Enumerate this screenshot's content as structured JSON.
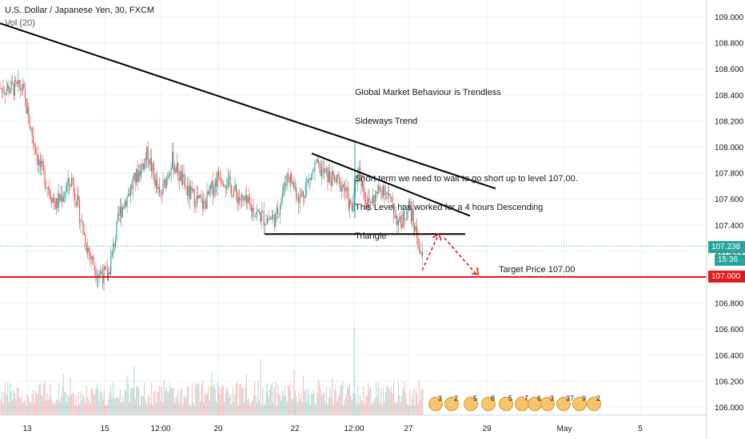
{
  "header": {
    "symbol_line": "U.S. Dollar / Japanese Yen, 30, FXCM",
    "indicator": "Vol (20)"
  },
  "annotation": {
    "lines": [
      "Global Market Behaviour is Trendless",
      "Sideways Trend",
      "",
      "Short term we need to wait to go short up to level 107.00.",
      "This Level has worked for a 4 hours Descending",
      "Triangle"
    ],
    "target_label": "Target Price 107.00"
  },
  "price_badges": {
    "current": "107.238",
    "countdown": "15:36",
    "target": "107.000"
  },
  "events": [
    "3",
    "2",
    "5",
    "8",
    "5",
    "7",
    "6",
    "3",
    "37",
    "9",
    "2"
  ],
  "colors": {
    "up": "#26a69a",
    "down": "#ef5350",
    "target_line": "#e5181b",
    "trend": "#000000"
  },
  "chart_data": {
    "type": "candlestick",
    "title": "U.S. Dollar / Japanese Yen, 30, FXCM",
    "ylim": [
      105.9,
      109.1
    ],
    "y_ticks": [
      106.0,
      106.2,
      106.4,
      106.6,
      106.8,
      107.0,
      107.2,
      107.4,
      107.6,
      107.8,
      108.0,
      108.2,
      108.4,
      108.6,
      108.8,
      109.0
    ],
    "x_ticks": [
      "13",
      "15",
      "12:00",
      "20",
      "22",
      "12:00",
      "27",
      "29",
      "May",
      "5"
    ],
    "approx_close_path": [
      {
        "x": "13",
        "y": 108.45
      },
      {
        "x": "13",
        "y": 108.2
      },
      {
        "x": "13-14",
        "y": 107.9
      },
      {
        "x": "14",
        "y": 107.55
      },
      {
        "x": "14-15",
        "y": 107.2
      },
      {
        "x": "15",
        "y": 107.0
      },
      {
        "x": "15",
        "y": 107.55
      },
      {
        "x": "15-12:00",
        "y": 107.95
      },
      {
        "x": "12:00",
        "y": 107.7
      },
      {
        "x": "12:00-20",
        "y": 107.75
      },
      {
        "x": "20",
        "y": 107.55
      },
      {
        "x": "20-22",
        "y": 107.8
      },
      {
        "x": "22",
        "y": 107.5
      },
      {
        "x": "22",
        "y": 107.8
      },
      {
        "x": "22-12:00",
        "y": 107.55
      },
      {
        "x": "12:00",
        "y": 107.75
      },
      {
        "x": "12:00-27",
        "y": 107.6
      },
      {
        "x": "27",
        "y": 107.45
      },
      {
        "x": "27",
        "y": 107.2
      }
    ],
    "lines": [
      {
        "name": "descending-trendline-long",
        "points": [
          [
            0,
            108.95
          ],
          [
            620,
            107.68
          ]
        ]
      },
      {
        "name": "descending-trendline-short",
        "points": [
          [
            390,
            107.95
          ],
          [
            588,
            107.47
          ]
        ]
      },
      {
        "name": "triangle-support",
        "points": [
          [
            331,
            107.33
          ],
          [
            582,
            107.33
          ]
        ]
      },
      {
        "name": "target-level",
        "y": 107.0
      }
    ],
    "levels": {
      "current_price": 107.238,
      "target": 107.0
    },
    "volume_indicator": "Vol (20)"
  }
}
